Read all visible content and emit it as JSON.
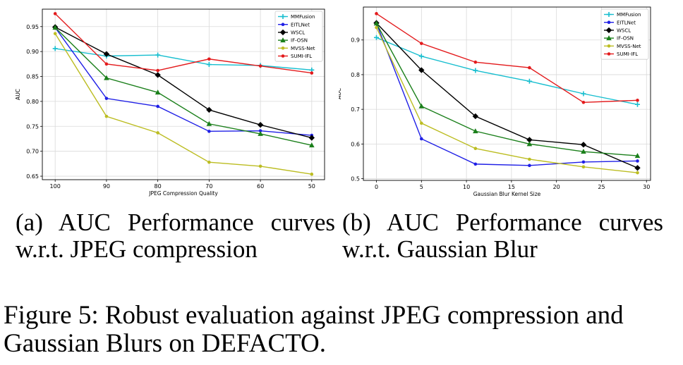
{
  "chart_data": [
    {
      "type": "line",
      "title": "",
      "xlabel": "JPEG Compression Quality",
      "ylabel": "AUC",
      "x": [
        100,
        90,
        80,
        70,
        60,
        50
      ],
      "x_tick_labels": [
        "100",
        "90",
        "80",
        "70",
        "60",
        "50"
      ],
      "y_tick_labels": [
        "0.65",
        "0.70",
        "0.75",
        "0.80",
        "0.85",
        "0.90",
        "0.95"
      ],
      "y_ticks": [
        0.65,
        0.7,
        0.75,
        0.8,
        0.85,
        0.9,
        0.95
      ],
      "xlim": [
        102.5,
        47.5
      ],
      "ylim": [
        0.643,
        0.985
      ],
      "grid": true,
      "legend_position": "top-right",
      "series": [
        {
          "name": "MMFusion",
          "color": "#17becf",
          "marker": "plus",
          "values": [
            0.906,
            0.891,
            0.893,
            0.874,
            0.872,
            0.863
          ]
        },
        {
          "name": "EITLNet",
          "color": "#1f1fe6",
          "marker": "dot",
          "values": [
            0.948,
            0.806,
            0.79,
            0.74,
            0.741,
            0.732
          ]
        },
        {
          "name": "WSCL",
          "color": "#000000",
          "marker": "diamond",
          "values": [
            0.949,
            0.895,
            0.853,
            0.783,
            0.753,
            0.727
          ]
        },
        {
          "name": "IF-OSN",
          "color": "#1a7f1a",
          "marker": "triangle",
          "values": [
            0.948,
            0.847,
            0.818,
            0.755,
            0.735,
            0.712
          ]
        },
        {
          "name": "MVSS-Net",
          "color": "#bcbd22",
          "marker": "dot",
          "values": [
            0.936,
            0.77,
            0.737,
            0.678,
            0.67,
            0.654
          ]
        },
        {
          "name": "SUMI-IFL",
          "color": "#e31a1c",
          "marker": "dot",
          "values": [
            0.976,
            0.875,
            0.862,
            0.885,
            0.871,
            0.857
          ]
        }
      ]
    },
    {
      "type": "line",
      "title": "",
      "xlabel": "Gaussian Blur Kernel Size",
      "ylabel": "AUC",
      "x": [
        0,
        5,
        11,
        17,
        23,
        29
      ],
      "x_ticks": [
        0,
        5,
        10,
        15,
        20,
        25,
        30
      ],
      "x_tick_labels": [
        "0",
        "5",
        "10",
        "15",
        "20",
        "25",
        "30"
      ],
      "y_ticks": [
        0.5,
        0.6,
        0.7,
        0.8,
        0.9
      ],
      "y_tick_labels": [
        "0.5",
        "0.6",
        "0.7",
        "0.8",
        "0.9"
      ],
      "xlim": [
        -1.45,
        30.45
      ],
      "ylim": [
        0.495,
        0.995
      ],
      "grid": true,
      "legend_position": "top-right",
      "series": [
        {
          "name": "MMFusion",
          "color": "#17becf",
          "marker": "plus",
          "values": [
            0.907,
            0.853,
            0.812,
            0.781,
            0.745,
            0.714
          ]
        },
        {
          "name": "EITLNet",
          "color": "#1f1fe6",
          "marker": "dot",
          "values": [
            0.948,
            0.615,
            0.542,
            0.538,
            0.548,
            0.551
          ]
        },
        {
          "name": "WSCL",
          "color": "#000000",
          "marker": "diamond",
          "values": [
            0.949,
            0.813,
            0.68,
            0.612,
            0.598,
            0.531
          ]
        },
        {
          "name": "IF-OSN",
          "color": "#1a7f1a",
          "marker": "triangle",
          "values": [
            0.948,
            0.709,
            0.637,
            0.6,
            0.578,
            0.566
          ]
        },
        {
          "name": "MVSS-Net",
          "color": "#bcbd22",
          "marker": "dot",
          "values": [
            0.936,
            0.66,
            0.587,
            0.556,
            0.534,
            0.517
          ]
        },
        {
          "name": "SUMI-IFL",
          "color": "#e31a1c",
          "marker": "dot",
          "values": [
            0.976,
            0.89,
            0.836,
            0.82,
            0.72,
            0.726
          ]
        }
      ]
    }
  ],
  "captions": {
    "panel_a": "(a) AUC Performance curves w.r.t. JPEG compression",
    "panel_b": "(b) AUC Performance curves w.r.t. Gaussian Blur",
    "figure": "Figure 5: Robust evaluation against JPEG compression and Gaussian Blurs on DEFACTO."
  }
}
